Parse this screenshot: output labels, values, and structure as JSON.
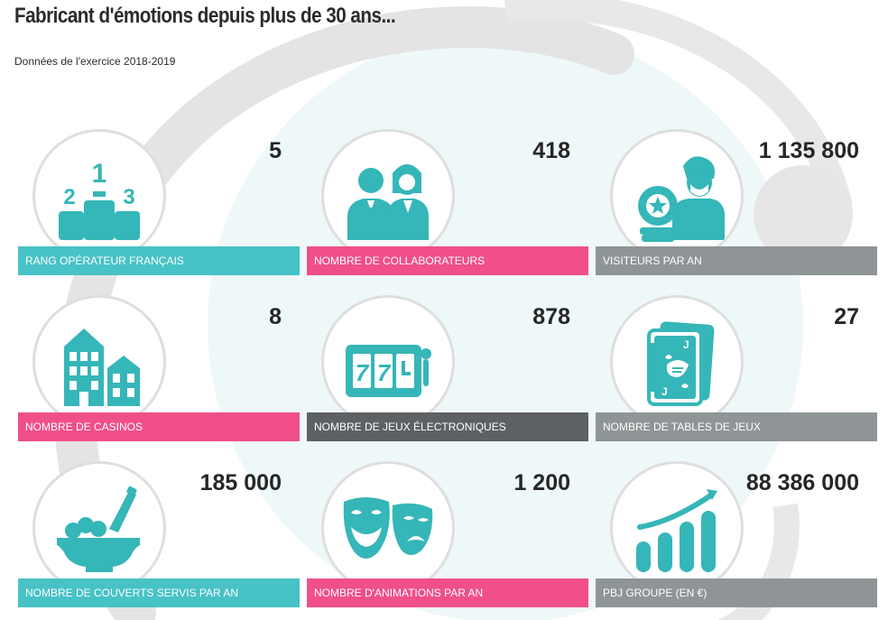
{
  "page": {
    "title": "Fabricant d'émotions depuis plus de 30 ans...",
    "subtitle": "Données de l'exercice 2018-2019"
  },
  "colors": {
    "teal": "#47c2c6",
    "pink": "#f04f8a",
    "gray": "#8f9596",
    "dark": "#5e6164",
    "icon": "#35b6b8"
  },
  "stats": [
    {
      "value": "5",
      "label": "RANG OPÉRATEUR FRANÇAIS",
      "icon": "podium-icon",
      "color": "teal"
    },
    {
      "value": "418",
      "label": "NOMBRE DE COLLABORATEURS",
      "icon": "staff-icon",
      "color": "pink"
    },
    {
      "value": "1 135 800",
      "label": "VISITEURS PAR AN",
      "icon": "visitor-icon",
      "color": "gray"
    },
    {
      "value": "8",
      "label": "NOMBRE DE CASINOS",
      "icon": "buildings-icon",
      "color": "pink"
    },
    {
      "value": "878",
      "label": "NOMBRE DE JEUX ÉLECTRONIQUES",
      "icon": "slot-machine-icon",
      "color": "dark"
    },
    {
      "value": "27",
      "label": "NOMBRE DE TABLES DE JEUX",
      "icon": "playing-cards-icon",
      "color": "gray"
    },
    {
      "value": "185 000",
      "label": "NOMBRE DE COUVERTS SERVIS PAR AN",
      "icon": "champagne-bucket-icon",
      "color": "teal"
    },
    {
      "value": "1 200",
      "label": "NOMBRE D'ANIMATIONS PAR AN",
      "icon": "theater-masks-icon",
      "color": "pink"
    },
    {
      "value": "88 386 000",
      "label": "PBJ GROUPE (EN €)",
      "icon": "growth-chart-icon",
      "color": "gray"
    }
  ]
}
